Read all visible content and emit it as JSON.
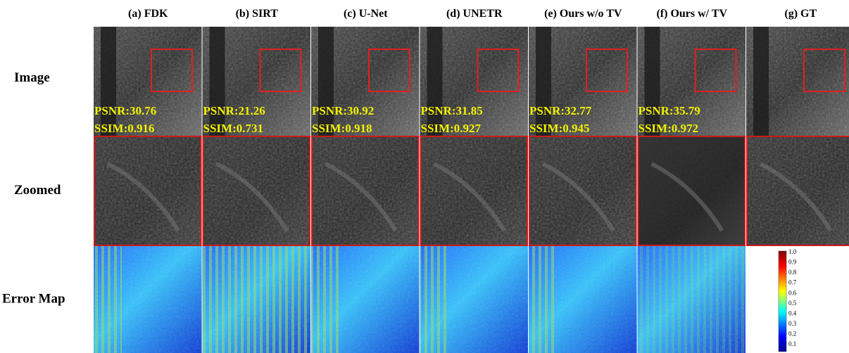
{
  "columns": [
    {
      "header": "(a) FDK",
      "psnr": "PSNR:30.76",
      "ssim": "SSIM:0.916"
    },
    {
      "header": "(b) SIRT",
      "psnr": "PSNR:21.26",
      "ssim": "SSIM:0.731"
    },
    {
      "header": "(c) U-Net",
      "psnr": "PSNR:30.92",
      "ssim": "SSIM:0.918"
    },
    {
      "header": "(d) UNETR",
      "psnr": "PSNR:31.85",
      "ssim": "SSIM:0.927"
    },
    {
      "header": "(e) Ours w/o TV",
      "psnr": "PSNR:32.77",
      "ssim": "SSIM:0.945"
    },
    {
      "header": "(f) Ours w/ TV",
      "psnr": "PSNR:35.79",
      "ssim": "SSIM:0.972"
    },
    {
      "header": "(g) GT"
    }
  ],
  "rows": [
    "Image",
    "Zoomed",
    "Error Map"
  ],
  "colorbar": [
    "1.0",
    "0.9",
    "0.8",
    "0.7",
    "0.6",
    "0.5",
    "0.4",
    "0.3",
    "0.2",
    "0.1"
  ]
}
